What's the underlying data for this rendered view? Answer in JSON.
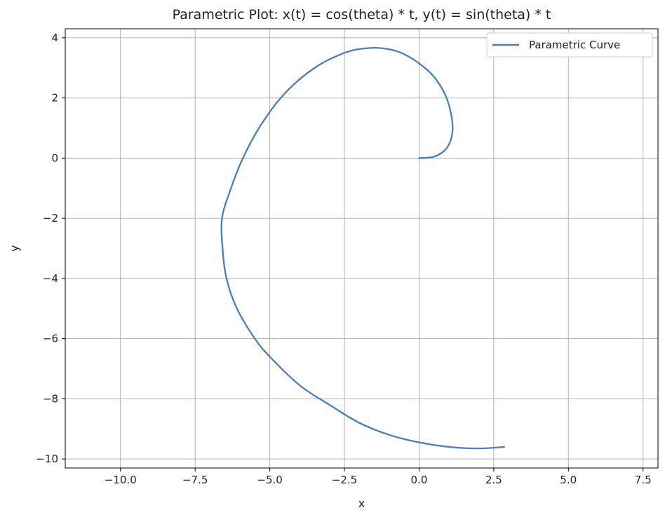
{
  "chart_data": {
    "type": "line",
    "title": "Parametric Plot: x(t) = cos(theta) * t, y(t) = sin(theta) * t",
    "xlabel": "x",
    "ylabel": "y",
    "xlim": [
      -11.85,
      8.0
    ],
    "ylim": [
      -10.3,
      4.3
    ],
    "xticks": [
      -10.0,
      -7.5,
      -5.0,
      -2.5,
      0.0,
      2.5,
      5.0,
      7.5
    ],
    "xtick_labels": [
      "−10.0",
      "−7.5",
      "−5.0",
      "−2.5",
      "0.0",
      "2.5",
      "5.0",
      "7.5"
    ],
    "yticks": [
      -10,
      -8,
      -6,
      -4,
      -2,
      0,
      2,
      4
    ],
    "ytick_labels": [
      "−10",
      "−8",
      "−6",
      "−4",
      "−2",
      "0",
      "2",
      "4"
    ],
    "grid": true,
    "legend_position": "top-right",
    "series": [
      {
        "name": "Parametric Curve",
        "color": "#4a7fb8",
        "points": [
          [
            0.0,
            0.0
          ],
          [
            0.5,
            0.05
          ],
          [
            0.9,
            0.3
          ],
          [
            1.1,
            0.75
          ],
          [
            1.1,
            1.3
          ],
          [
            0.9,
            2.05
          ],
          [
            0.5,
            2.7
          ],
          [
            0.0,
            3.15
          ],
          [
            -0.6,
            3.5
          ],
          [
            -1.2,
            3.65
          ],
          [
            -1.8,
            3.65
          ],
          [
            -2.5,
            3.5
          ],
          [
            -3.5,
            3.0
          ],
          [
            -4.5,
            2.15
          ],
          [
            -5.3,
            1.1
          ],
          [
            -5.9,
            0.0
          ],
          [
            -6.3,
            -1.0
          ],
          [
            -6.6,
            -2.0
          ],
          [
            -6.58,
            -3.0
          ],
          [
            -6.45,
            -4.0
          ],
          [
            -6.1,
            -5.0
          ],
          [
            -5.5,
            -6.0
          ],
          [
            -5.0,
            -6.6
          ],
          [
            -4.0,
            -7.55
          ],
          [
            -3.0,
            -8.2
          ],
          [
            -2.0,
            -8.8
          ],
          [
            -1.0,
            -9.2
          ],
          [
            0.0,
            -9.45
          ],
          [
            1.0,
            -9.6
          ],
          [
            2.0,
            -9.65
          ],
          [
            2.85,
            -9.6
          ]
        ]
      }
    ]
  }
}
